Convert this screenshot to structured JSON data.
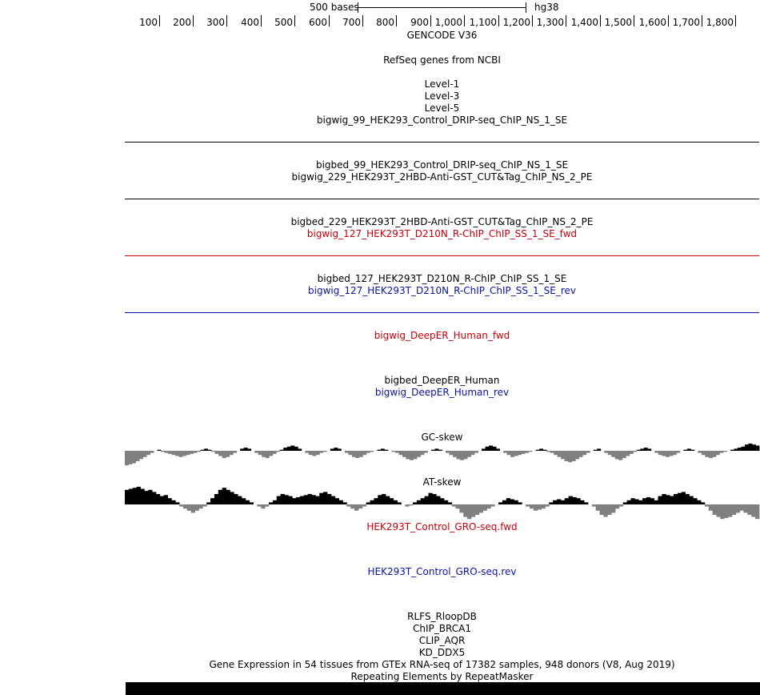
{
  "scale_bar": {
    "label": "500 bases",
    "assembly": "hg38"
  },
  "ruler_ticks": [
    "100",
    "200",
    "300",
    "400",
    "500",
    "600",
    "700",
    "800",
    "900",
    "1,000",
    "1,100",
    "1,200",
    "1,300",
    "1,400",
    "1,500",
    "1,600",
    "1,700",
    "1,800"
  ],
  "tracks": [
    {
      "id": "gencode",
      "label": "GENCODE V36",
      "color": "#000000"
    },
    {
      "id": "refseq",
      "label": "RefSeq genes from NCBI",
      "color": "#000000"
    },
    {
      "id": "level1",
      "label": "Level-1",
      "color": "#000000"
    },
    {
      "id": "level3",
      "label": "Level-3",
      "color": "#000000"
    },
    {
      "id": "level5",
      "label": "Level-5",
      "color": "#000000"
    },
    {
      "id": "bigwig99",
      "label": "bigwig_99_HEK293_Control_DRIP-seq_ChIP_NS_1_SE",
      "color": "#000000"
    },
    {
      "id": "bigbed99",
      "label": "bigbed_99_HEK293_Control_DRIP-seq_ChIP_NS_1_SE",
      "color": "#000000"
    },
    {
      "id": "bigwig229",
      "label": "bigwig_229_HEK293T_2HBD-Anti-GST_CUT&Tag_ChIP_NS_2_PE",
      "color": "#000000"
    },
    {
      "id": "bigbed229",
      "label": "bigbed_229_HEK293T_2HBD-Anti-GST_CUT&Tag_ChIP_NS_2_PE",
      "color": "#000000"
    },
    {
      "id": "bigwig127fwd",
      "label": "bigwig_127_HEK293T_D210N_R-ChIP_ChIP_SS_1_SE_fwd",
      "color": "#c8000a"
    },
    {
      "id": "bigbed127",
      "label": "bigbed_127_HEK293T_D210N_R-ChIP_ChIP_SS_1_SE",
      "color": "#000000"
    },
    {
      "id": "bigwig127rev",
      "label": "bigwig_127_HEK293T_D210N_R-ChIP_ChIP_SS_1_SE_rev",
      "color": "#0a14a0"
    },
    {
      "id": "deeperfwd",
      "label": "bigwig_DeepER_Human_fwd",
      "color": "#c8000a"
    },
    {
      "id": "deeperbed",
      "label": "bigbed_DeepER_Human",
      "color": "#000000"
    },
    {
      "id": "deeperrev",
      "label": "bigwig_DeepER_Human_rev",
      "color": "#0a14a0"
    },
    {
      "id": "gcskew",
      "label": "GC-skew",
      "color": "#000000"
    },
    {
      "id": "atskew",
      "label": "AT-skew",
      "color": "#000000"
    },
    {
      "id": "grofwd",
      "label": "HEK293T_Control_GRO-seq.fwd",
      "color": "#c8000a"
    },
    {
      "id": "grorev",
      "label": "HEK293T_Control_GRO-seq.rev",
      "color": "#0a14a0"
    },
    {
      "id": "rlfs",
      "label": "RLFS_RloopDB",
      "color": "#000000"
    },
    {
      "id": "chipbrca1",
      "label": "ChIP_BRCA1",
      "color": "#000000"
    },
    {
      "id": "clipaqr",
      "label": "CLIP_AQR",
      "color": "#000000"
    },
    {
      "id": "kdddx5",
      "label": "KD_DDX5",
      "color": "#000000"
    },
    {
      "id": "gtex",
      "label": "Gene Expression in 54 tissues from GTEx RNA-seq of 17382 samples, 948 donors (V8, Aug 2019)",
      "color": "#000000"
    },
    {
      "id": "rmsk",
      "label": "Repeating Elements by RepeatMasker",
      "color": "#000000"
    }
  ],
  "divider_colors": {
    "black": "#000000",
    "red": "#c8000a",
    "blue": "#0a14a0"
  },
  "skew_colors": {
    "negative": "#808080",
    "positive": "#000000"
  },
  "gc_skew": [
    -0.7,
    -0.65,
    -0.6,
    -0.5,
    -0.4,
    -0.3,
    -0.2,
    -0.1,
    0.0,
    0.05,
    -0.05,
    -0.1,
    -0.15,
    -0.2,
    -0.25,
    -0.3,
    -0.25,
    -0.2,
    -0.15,
    -0.1,
    -0.05,
    0.05,
    0.1,
    0.05,
    -0.05,
    -0.15,
    -0.25,
    -0.35,
    -0.3,
    -0.2,
    -0.1,
    0.0,
    0.1,
    0.15,
    0.1,
    0.0,
    -0.1,
    -0.2,
    -0.3,
    -0.35,
    -0.25,
    -0.15,
    -0.05,
    0.05,
    0.15,
    0.2,
    0.25,
    0.2,
    0.1,
    0.0,
    -0.1,
    -0.2,
    -0.25,
    -0.2,
    -0.1,
    -0.05,
    0.0,
    0.1,
    0.15,
    0.1,
    0.0,
    -0.1,
    -0.2,
    -0.3,
    -0.35,
    -0.3,
    -0.2,
    -0.1,
    -0.05,
    0.0,
    0.05,
    0.1,
    0.05,
    0.0,
    -0.05,
    -0.1,
    -0.2,
    -0.3,
    -0.4,
    -0.45,
    -0.4,
    -0.3,
    -0.2,
    -0.1,
    0.0,
    0.05,
    0.1,
    0.05,
    0.0,
    -0.1,
    -0.2,
    -0.3,
    -0.4,
    -0.45,
    -0.4,
    -0.3,
    -0.2,
    -0.1,
    0.0,
    0.1,
    0.2,
    0.25,
    0.2,
    0.1,
    0.0,
    -0.1,
    -0.2,
    -0.3,
    -0.25,
    -0.2,
    -0.15,
    -0.1,
    -0.05,
    0.0,
    0.05,
    0.1,
    0.05,
    -0.05,
    -0.1,
    -0.2,
    -0.3,
    -0.4,
    -0.5,
    -0.55,
    -0.5,
    -0.4,
    -0.3,
    -0.2,
    -0.1,
    0.0,
    0.05,
    0.1,
    0.0,
    -0.1,
    -0.2,
    -0.3,
    -0.4,
    -0.45,
    -0.35,
    -0.25,
    -0.15,
    -0.05,
    0.05,
    0.1,
    0.15,
    0.1,
    0.0,
    -0.1,
    -0.2,
    -0.25,
    -0.3,
    -0.25,
    -0.2,
    -0.1,
    0.0,
    0.05,
    0.1,
    0.05,
    0.0,
    -0.1,
    -0.2,
    -0.3,
    -0.35,
    -0.3,
    -0.2,
    -0.1,
    -0.05,
    0.0,
    0.05,
    0.1,
    0.15,
    0.2,
    0.3,
    0.35,
    0.3,
    0.25
  ],
  "at_skew": [
    0.7,
    0.75,
    0.8,
    0.85,
    0.75,
    0.65,
    0.7,
    0.6,
    0.5,
    0.4,
    0.45,
    0.3,
    0.2,
    0.1,
    -0.1,
    -0.2,
    -0.3,
    -0.4,
    -0.3,
    -0.2,
    -0.1,
    0.1,
    0.3,
    0.5,
    0.7,
    0.8,
    0.7,
    0.6,
    0.5,
    0.4,
    0.3,
    0.2,
    0.1,
    0.0,
    -0.1,
    -0.2,
    -0.1,
    0.1,
    0.2,
    0.4,
    0.5,
    0.45,
    0.4,
    0.3,
    0.35,
    0.4,
    0.45,
    0.5,
    0.45,
    0.4,
    0.55,
    0.6,
    0.5,
    0.4,
    0.3,
    0.2,
    0.1,
    -0.1,
    -0.2,
    -0.3,
    -0.2,
    -0.1,
    0.1,
    0.2,
    0.3,
    0.45,
    0.5,
    0.4,
    0.3,
    0.2,
    0.1,
    0.0,
    -0.1,
    -0.05,
    0.1,
    0.2,
    0.3,
    0.4,
    0.55,
    0.5,
    0.4,
    0.3,
    0.2,
    0.1,
    -0.1,
    -0.2,
    -0.4,
    -0.6,
    -0.7,
    -0.6,
    -0.5,
    -0.4,
    -0.3,
    -0.2,
    -0.1,
    0.0,
    0.1,
    0.2,
    0.3,
    0.25,
    0.2,
    0.1,
    0.0,
    -0.1,
    -0.2,
    -0.3,
    -0.25,
    -0.2,
    -0.1,
    0.1,
    0.2,
    0.25,
    0.2,
    0.3,
    0.4,
    0.35,
    0.3,
    0.2,
    0.1,
    0.0,
    -0.1,
    -0.3,
    -0.5,
    -0.6,
    -0.5,
    -0.4,
    -0.2,
    -0.1,
    0.1,
    0.2,
    0.3,
    0.25,
    0.2,
    0.3,
    0.35,
    0.3,
    0.2,
    0.4,
    0.5,
    0.45,
    0.4,
    0.5,
    0.55,
    0.6,
    0.5,
    0.4,
    0.3,
    0.2,
    0.1,
    -0.1,
    -0.3,
    -0.5,
    -0.6,
    -0.7,
    -0.65,
    -0.6,
    -0.5,
    -0.4,
    -0.3,
    -0.4,
    -0.5,
    -0.6,
    -0.7
  ]
}
